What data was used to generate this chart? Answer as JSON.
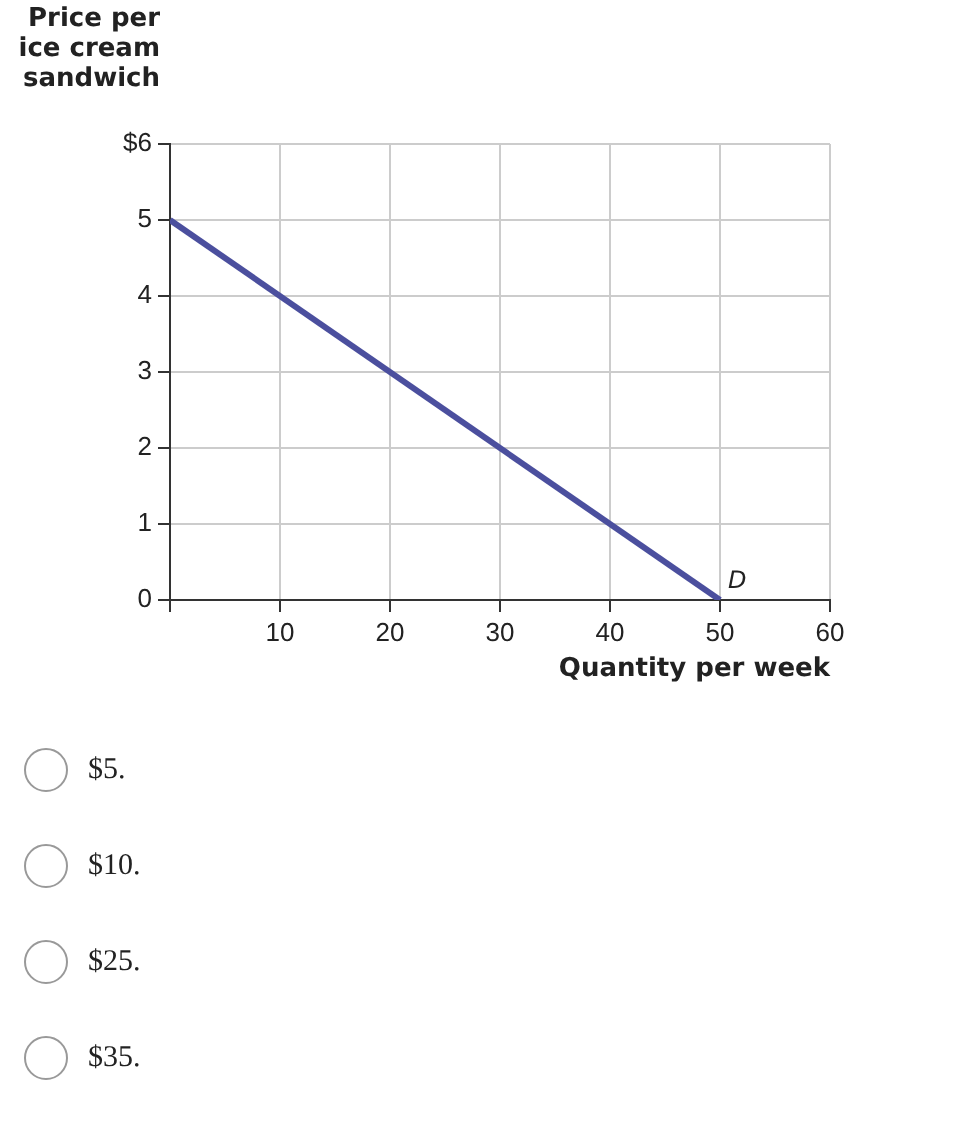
{
  "chart_data": {
    "type": "line",
    "ylabel": "Price per\nice cream\nsandwich",
    "xlabel": "Quantity per week",
    "x": [
      0,
      50
    ],
    "series": [
      {
        "color": "#4b4f9e",
        "values": [
          5,
          0
        ]
      }
    ],
    "xlim": [
      0,
      60
    ],
    "xticks": [
      {
        "value": 0,
        "label": null
      },
      10,
      20,
      30,
      40,
      50,
      60
    ],
    "ylim": [
      0,
      6
    ],
    "yticks": [
      0,
      1,
      2,
      3,
      4,
      5,
      {
        "value": 6,
        "label": "$6"
      }
    ],
    "grid": true,
    "legend": false,
    "marker": "none",
    "line_style": "solid",
    "annotations": [
      {
        "text": "D",
        "x": 50,
        "y": 0
      },
      "$5.",
      "$10.",
      "$25.",
      "$35."
    ]
  }
}
